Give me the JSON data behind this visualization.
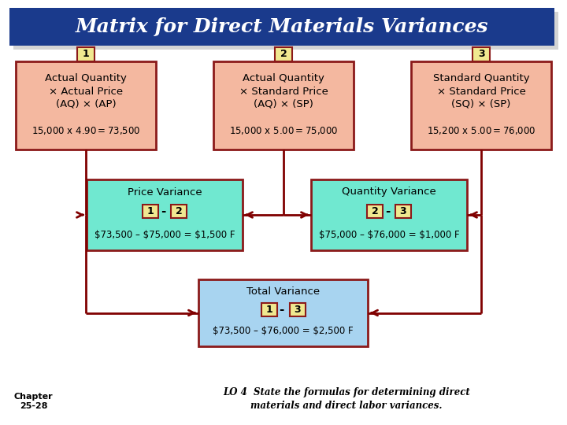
{
  "title": "Matrix for Direct Materials Variances",
  "title_bg": "#1a3a8c",
  "title_color": "white",
  "title_fontsize": 18,
  "top_box_bg": "#f4b8a0",
  "top_box_border": "#8b1a1a",
  "mid_box_bg": "#70e8d0",
  "mid_box_border": "#8b1a1a",
  "bot_box_bg": "#a8d4f0",
  "bot_box_border": "#8b1a1a",
  "num_box_bg": "#f0e890",
  "num_box_border": "#8b1a1a",
  "box1_label": "1",
  "box1_lines": [
    "Actual Quantity",
    "× Actual Price",
    "(AQ) × (AP)",
    "",
    "15,000 x $4.90 = $73,500"
  ],
  "box2_label": "2",
  "box2_lines": [
    "Actual Quantity",
    "× Standard Price",
    "(AQ) × (SP)",
    "",
    "15,000 x $5.00 = $75,000"
  ],
  "box3_label": "3",
  "box3_lines": [
    "Standard Quantity",
    "× Standard Price",
    "(SQ) × (SP)",
    "",
    "15,200 x $5.00 = $76,000"
  ],
  "pv_title": "Price Variance",
  "pv_n1": "1",
  "pv_n2": "2",
  "pv_formula": "$73,500 – $75,000 = $1,500 F",
  "qv_title": "Quantity Variance",
  "qv_n1": "2",
  "qv_n2": "3",
  "qv_formula": "$75,000 – $76,000 = $1,000 F",
  "tv_title": "Total Variance",
  "tv_n1": "1",
  "tv_n2": "3",
  "tv_formula": "$73,500 – $76,000 = $2,500 F",
  "chapter_text": "Chapter\n25-28",
  "lo_line1": "LO 4  State the formulas for determining direct",
  "lo_line2": "materials and direct labor variances.",
  "arrow_color": "#800000",
  "bg_color": "#ffffff",
  "shadow_color": "#aaaaaa"
}
